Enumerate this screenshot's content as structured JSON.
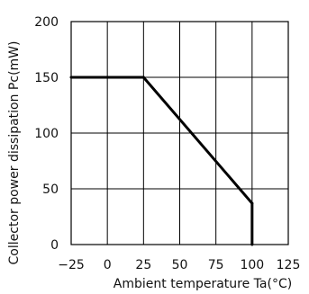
{
  "chart_data": {
    "type": "line",
    "title": "",
    "xlabel": "Ambient temperature Ta(°C)",
    "ylabel": "Collector power dissipation Pc(mW)",
    "xlim": [
      -25,
      125
    ],
    "ylim": [
      0,
      200
    ],
    "xticks": [
      -25,
      0,
      25,
      50,
      75,
      100,
      125
    ],
    "yticks": [
      0,
      50,
      100,
      150,
      200
    ],
    "x_tick_labels": [
      "−25",
      "0",
      "25",
      "50",
      "75",
      "100",
      "125"
    ],
    "y_tick_labels": [
      "0",
      "50",
      "100",
      "150",
      "200"
    ],
    "grid": true,
    "legend": "none",
    "series": [
      {
        "x": [
          -25,
          25,
          100,
          100
        ],
        "y": [
          150,
          150,
          37,
          0
        ]
      }
    ],
    "colors": {
      "line": "#000000",
      "grid": "#000000",
      "text": "#111111"
    }
  }
}
